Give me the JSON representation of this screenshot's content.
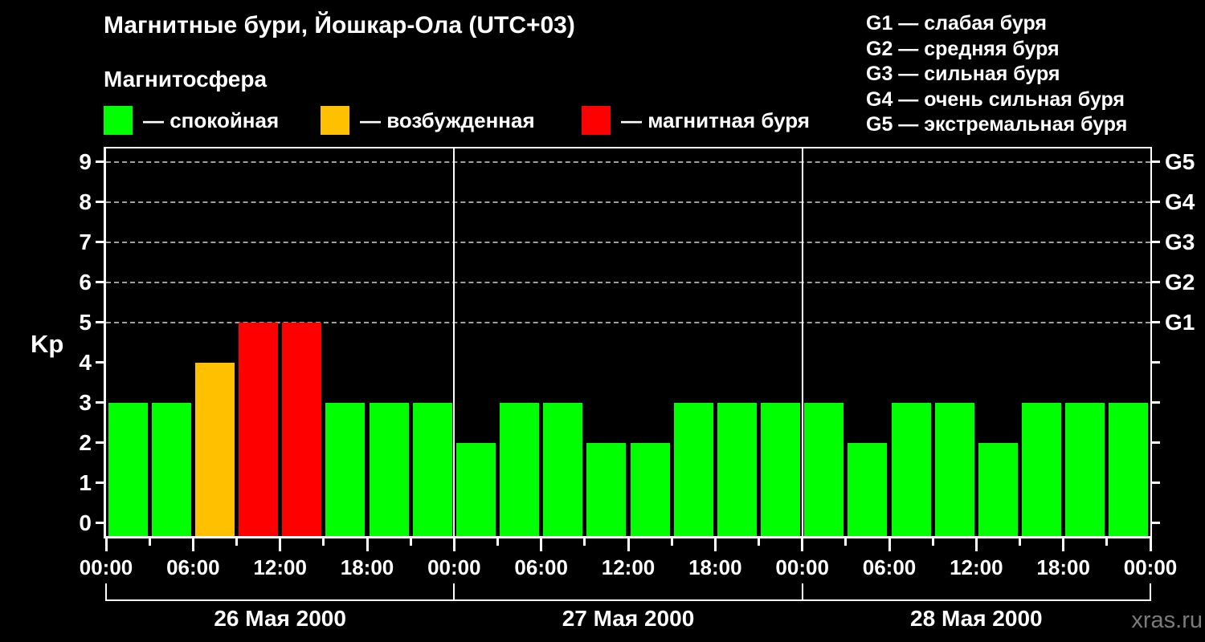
{
  "title": "Магнитные бури, Йошкар-Ола (UTC+03)",
  "subtitle": "Магнитосфера",
  "magnetosphere_legend": [
    {
      "key": "quiet",
      "label": "— спокойная",
      "color": "#00ff00"
    },
    {
      "key": "excited",
      "label": "— возбужденная",
      "color": "#ffc000"
    },
    {
      "key": "storm",
      "label": "— магнитная буря",
      "color": "#ff0000"
    }
  ],
  "storm_scale_legend": [
    "G1 — слабая буря",
    "G2 — средняя буря",
    "G3 — сильная буря",
    "G4 — очень сильная буря",
    "G5 — экстремальная буря"
  ],
  "watermark": "xras.ru",
  "chart_data": {
    "type": "bar",
    "title": "Магнитные бури, Йошкар-Ола (UTC+03)",
    "ylabel": "Kp",
    "ylim": [
      0,
      9.4
    ],
    "yticks": [
      0,
      1,
      2,
      3,
      4,
      5,
      6,
      7,
      8,
      9
    ],
    "grid_levels": [
      5,
      6,
      7,
      8,
      9
    ],
    "grid_style": "dashed gray horizontal lines at storm levels only",
    "right_axis": [
      {
        "level": 5,
        "label": "G1"
      },
      {
        "level": 6,
        "label": "G2"
      },
      {
        "level": 7,
        "label": "G3"
      },
      {
        "level": 8,
        "label": "G4"
      },
      {
        "level": 9,
        "label": "G5"
      }
    ],
    "interval_hours": 3,
    "x_major_tick_step_hours": 6,
    "x_tick_labels": [
      "00:00",
      "06:00",
      "12:00",
      "18:00"
    ],
    "days": [
      {
        "date": "26 Мая 2000",
        "values": [
          3,
          3,
          4,
          5,
          5,
          3,
          3,
          3
        ]
      },
      {
        "date": "27 Мая 2000",
        "values": [
          2,
          3,
          3,
          2,
          2,
          3,
          3,
          3
        ]
      },
      {
        "date": "28 Мая 2000",
        "values": [
          3,
          2,
          3,
          3,
          2,
          3,
          3,
          3
        ]
      }
    ],
    "color_rules": {
      "quiet_max": 3,
      "excited_max": 4,
      "quiet": "#00ff00",
      "excited": "#ffc000",
      "storm": "#ff0000"
    },
    "legend_position": "top"
  }
}
